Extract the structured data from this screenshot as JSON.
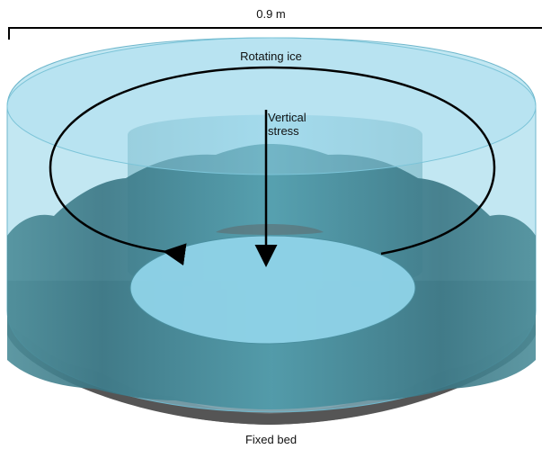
{
  "labels": {
    "scale": "0.9 m",
    "rotating_ice": "Rotating ice",
    "vertical_stress": "Vertical\nstress",
    "fixed_bed": "Fixed bed"
  },
  "colors": {
    "ice_light": "#8fd3e8",
    "ice_mid": "#5fb7cf",
    "ice_dark": "#3f7f8e",
    "bed_grey": "#6c6c6c",
    "arrow": "#000000"
  }
}
